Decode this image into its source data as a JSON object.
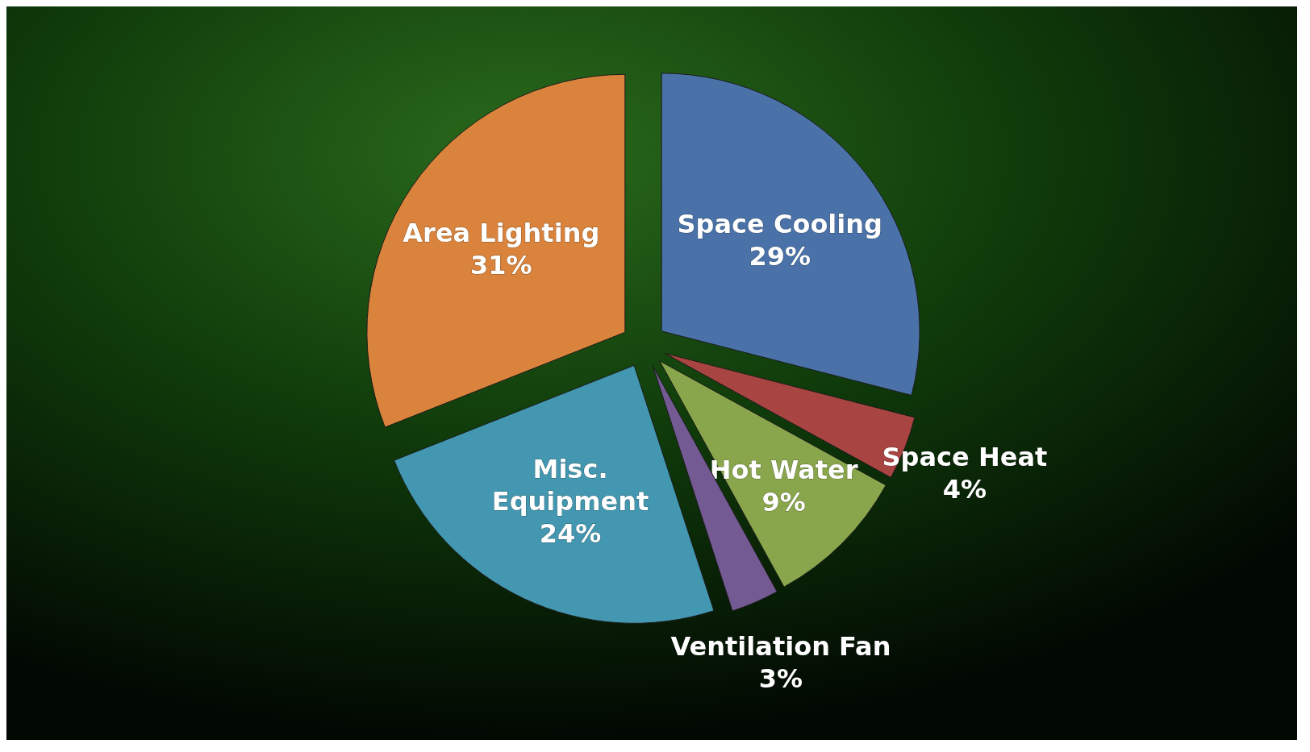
{
  "chart_data": {
    "type": "pie",
    "categories": [
      "Space Cooling",
      "Space Heat",
      "Hot Water",
      "Ventilation Fan",
      "Misc. Equipment",
      "Area Lighting"
    ],
    "values": [
      29,
      4,
      9,
      3,
      24,
      31
    ],
    "colors": [
      "#4a72a8",
      "#a84442",
      "#8aa64c",
      "#735a92",
      "#4397b0",
      "#d9833c"
    ],
    "value_labels": [
      "29%",
      "4%",
      "9%",
      "3%",
      "24%",
      "31%"
    ]
  }
}
